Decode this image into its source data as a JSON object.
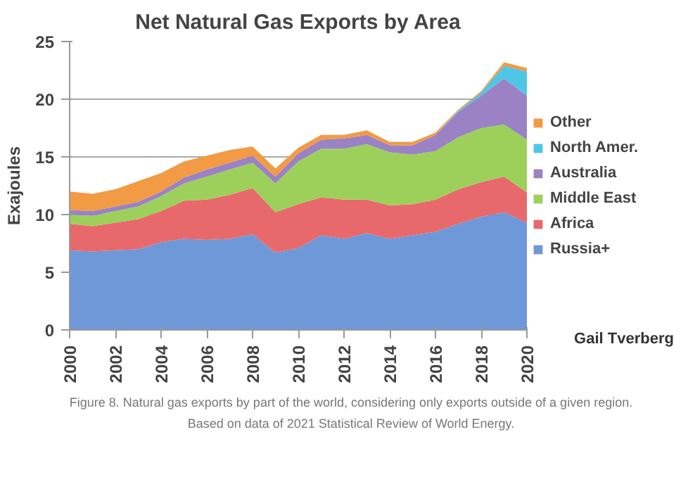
{
  "chart_data": {
    "type": "area",
    "title": "Net Natural Gas Exports by Area",
    "ylabel": "Exajoules",
    "stacked": true,
    "legend": "right",
    "grid": "y",
    "x": [
      2000,
      2001,
      2002,
      2003,
      2004,
      2005,
      2006,
      2007,
      2008,
      2009,
      2010,
      2011,
      2012,
      2013,
      2014,
      2015,
      2016,
      2017,
      2018,
      2019,
      2020
    ],
    "xlim": [
      2000,
      2020
    ],
    "xticks": [
      2000,
      2002,
      2004,
      2006,
      2008,
      2010,
      2012,
      2014,
      2016,
      2018,
      2020
    ],
    "ylim": [
      0,
      25
    ],
    "yticks": [
      0,
      5,
      10,
      15,
      20,
      25
    ],
    "series": [
      {
        "name": "Russia+",
        "color": "#6f98d8",
        "values": [
          6.9,
          6.8,
          6.9,
          7.0,
          7.6,
          7.9,
          7.8,
          7.9,
          8.3,
          6.7,
          7.1,
          8.2,
          7.9,
          8.4,
          7.9,
          8.2,
          8.5,
          9.2,
          9.8,
          10.2,
          9.3
        ]
      },
      {
        "name": "Africa",
        "color": "#e8696b",
        "values": [
          2.3,
          2.2,
          2.4,
          2.6,
          2.7,
          3.3,
          3.5,
          3.8,
          4.0,
          3.5,
          3.8,
          3.3,
          3.4,
          2.9,
          2.9,
          2.7,
          2.8,
          3.0,
          3.0,
          3.1,
          2.6
        ]
      },
      {
        "name": "Middle East",
        "color": "#9dd05a",
        "values": [
          0.8,
          0.9,
          1.0,
          1.1,
          1.3,
          1.5,
          2.0,
          2.2,
          2.2,
          2.5,
          3.7,
          4.2,
          4.4,
          4.8,
          4.6,
          4.3,
          4.2,
          4.5,
          4.7,
          4.5,
          4.6
        ]
      },
      {
        "name": "Australia",
        "color": "#9a82c4",
        "values": [
          0.4,
          0.4,
          0.4,
          0.4,
          0.4,
          0.5,
          0.6,
          0.6,
          0.6,
          0.6,
          0.7,
          0.8,
          0.9,
          0.8,
          0.6,
          0.8,
          1.4,
          2.2,
          2.8,
          4.0,
          3.8
        ]
      },
      {
        "name": "North Amer.",
        "color": "#4fc6e6",
        "values": [
          0,
          0,
          0,
          0,
          0,
          0,
          0,
          0,
          0,
          0,
          0,
          0,
          0,
          0,
          0,
          0,
          0,
          0.1,
          0.3,
          1.1,
          2.1
        ]
      },
      {
        "name": "Other",
        "color": "#f29a44",
        "values": [
          1.6,
          1.5,
          1.5,
          1.8,
          1.6,
          1.4,
          1.2,
          1.1,
          0.8,
          0.7,
          0.5,
          0.4,
          0.3,
          0.4,
          0.3,
          0.3,
          0.2,
          0.1,
          0.1,
          0.3,
          0.3
        ]
      }
    ],
    "annotations": [
      "Gail Tverberg",
      "Figure 8. Natural gas exports by part of the world, considering only exports outside of a given region.",
      "Based on data of 2021 Statistical Review of World Energy."
    ]
  }
}
